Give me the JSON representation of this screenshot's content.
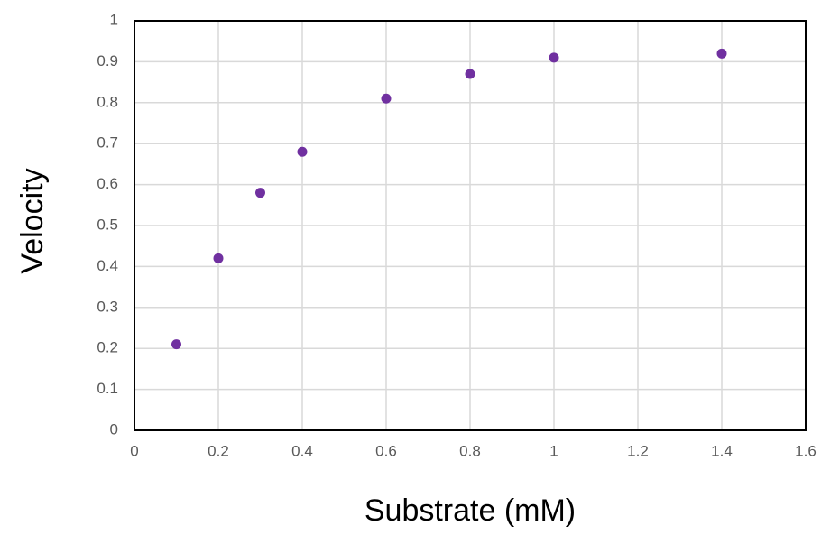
{
  "chart_data": {
    "type": "scatter",
    "x_label": "Substrate (mM)",
    "y_label": "Velocity",
    "x": [
      0.1,
      0.2,
      0.3,
      0.4,
      0.6,
      0.8,
      1,
      1.4
    ],
    "series": [
      {
        "color": "#7030a0",
        "values": [
          0.21,
          0.42,
          0.58,
          0.68,
          0.81,
          0.87,
          0.91,
          0.92
        ]
      }
    ],
    "xlim": [
      0,
      1.6
    ],
    "xticks": [
      0,
      0.2,
      0.4,
      0.6,
      0.8,
      1,
      1.2,
      1.4,
      1.6
    ],
    "ylim": [
      0,
      1
    ],
    "yticks": [
      0,
      0.1,
      0.2,
      0.3,
      0.4,
      0.5,
      0.6,
      0.7,
      0.8,
      0.9,
      1
    ],
    "grid": true
  }
}
